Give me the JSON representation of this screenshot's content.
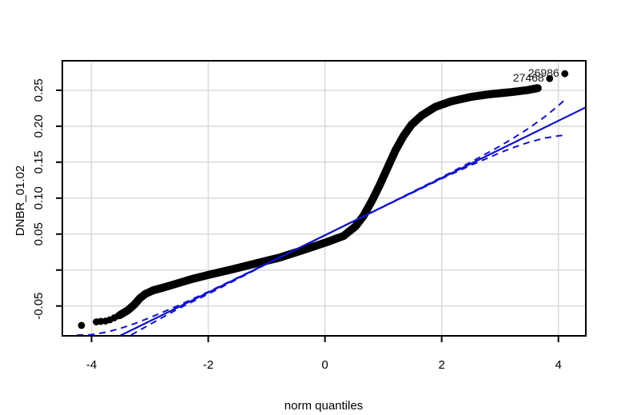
{
  "chart_data": {
    "type": "scatter",
    "subtype": "qq-plot",
    "title": "",
    "xlabel": "norm quantiles",
    "ylabel": "DNBR_01.02",
    "legend": "none",
    "grid": true,
    "xlim": [
      -4.5,
      4.47
    ],
    "ylim": [
      -0.0915,
      0.291
    ],
    "x_ticks": {
      "values": [
        -4,
        -2,
        0,
        2,
        4
      ],
      "labels": [
        "-4",
        "-2",
        "0",
        "2",
        "4"
      ]
    },
    "y_ticks": {
      "values": [
        -0.05,
        0,
        0.05,
        0.1,
        0.15,
        0.2,
        0.25
      ],
      "labels": [
        "-0.05",
        "",
        "0.05",
        "0.10",
        "0.15",
        "0.20",
        "0.25"
      ]
    },
    "colors": {
      "points": "#000000",
      "fit_line": "#1212cc",
      "envelope": "#1212cc",
      "grid": "#d9d9d9",
      "axis": "#000000",
      "outlier_text": "#1a1a1a",
      "background": "#ffffff"
    },
    "qq_line": {
      "slope": 0.0398,
      "intercept": 0.0484
    },
    "band": [
      [
        -3.514,
        -0.0626
      ],
      [
        -3.377,
        -0.0559
      ],
      [
        -3.268,
        -0.0481
      ],
      [
        -3.172,
        -0.0392
      ],
      [
        -3.076,
        -0.0331
      ],
      [
        -2.94,
        -0.0281
      ],
      [
        -2.762,
        -0.0242
      ],
      [
        -2.556,
        -0.0192
      ],
      [
        -2.283,
        -0.0126
      ],
      [
        -1.981,
        -0.0064
      ],
      [
        -1.598,
        0.0008
      ],
      [
        -1.187,
        0.0091
      ],
      [
        -0.777,
        0.0174
      ],
      [
        -0.366,
        0.028
      ],
      [
        0.044,
        0.0391
      ],
      [
        0.318,
        0.0474
      ],
      [
        0.524,
        0.0608
      ],
      [
        0.66,
        0.0752
      ],
      [
        0.797,
        0.0952
      ],
      [
        0.934,
        0.1174
      ],
      [
        1.071,
        0.1419
      ],
      [
        1.208,
        0.1663
      ],
      [
        1.345,
        0.1863
      ],
      [
        1.482,
        0.2019
      ],
      [
        1.66,
        0.2152
      ],
      [
        1.892,
        0.2269
      ],
      [
        2.166,
        0.2347
      ],
      [
        2.508,
        0.2408
      ],
      [
        2.851,
        0.2447
      ],
      [
        3.193,
        0.2474
      ],
      [
        3.467,
        0.2502
      ],
      [
        3.645,
        0.253
      ]
    ],
    "left_tail_points": [
      [
        -4.172,
        -0.077
      ],
      [
        -3.918,
        -0.072
      ],
      [
        -3.843,
        -0.0714
      ],
      [
        -3.761,
        -0.0709
      ],
      [
        -3.685,
        -0.0692
      ],
      [
        -3.61,
        -0.0664
      ],
      [
        -3.541,
        -0.0637
      ]
    ],
    "right_tail_points": [
      [
        3.85,
        0.2663
      ],
      [
        4.11,
        0.273
      ]
    ],
    "envelope_upper": [
      [
        -4.25,
        -0.0904
      ],
      [
        -4.0,
        -0.0898
      ],
      [
        -3.75,
        -0.0865
      ],
      [
        -3.5,
        -0.081
      ],
      [
        -3.25,
        -0.0742
      ],
      [
        -3.0,
        -0.0663
      ],
      [
        -2.5,
        -0.0489
      ],
      [
        -2.0,
        -0.0302
      ],
      [
        -1.5,
        -0.0108
      ],
      [
        -1.0,
        0.0088
      ],
      [
        0.0,
        0.0485
      ],
      [
        1.0,
        0.0884
      ],
      [
        1.5,
        0.1086
      ],
      [
        2.0,
        0.129
      ],
      [
        2.5,
        0.1501
      ],
      [
        3.0,
        0.1725
      ],
      [
        3.25,
        0.1846
      ],
      [
        3.5,
        0.1976
      ],
      [
        3.75,
        0.2121
      ],
      [
        4.0,
        0.2286
      ],
      [
        4.11,
        0.2367
      ]
    ],
    "envelope_lower": [
      [
        -3.32,
        -0.0903
      ],
      [
        -3.0,
        -0.0757
      ],
      [
        -2.5,
        -0.0533
      ],
      [
        -2.0,
        -0.0333
      ],
      [
        -1.0,
        0.0084
      ],
      [
        0.0,
        0.0483
      ],
      [
        1.0,
        0.088
      ],
      [
        2.0,
        0.127
      ],
      [
        2.5,
        0.1457
      ],
      [
        3.0,
        0.1631
      ],
      [
        3.25,
        0.171
      ],
      [
        3.5,
        0.1778
      ],
      [
        3.75,
        0.1833
      ],
      [
        4.0,
        0.1866
      ],
      [
        4.1,
        0.1875
      ]
    ],
    "outlier_labels": [
      {
        "text": "26986",
        "x": 4.11,
        "y": 0.273
      },
      {
        "text": "27468",
        "x": 3.85,
        "y": 0.2663
      }
    ]
  }
}
